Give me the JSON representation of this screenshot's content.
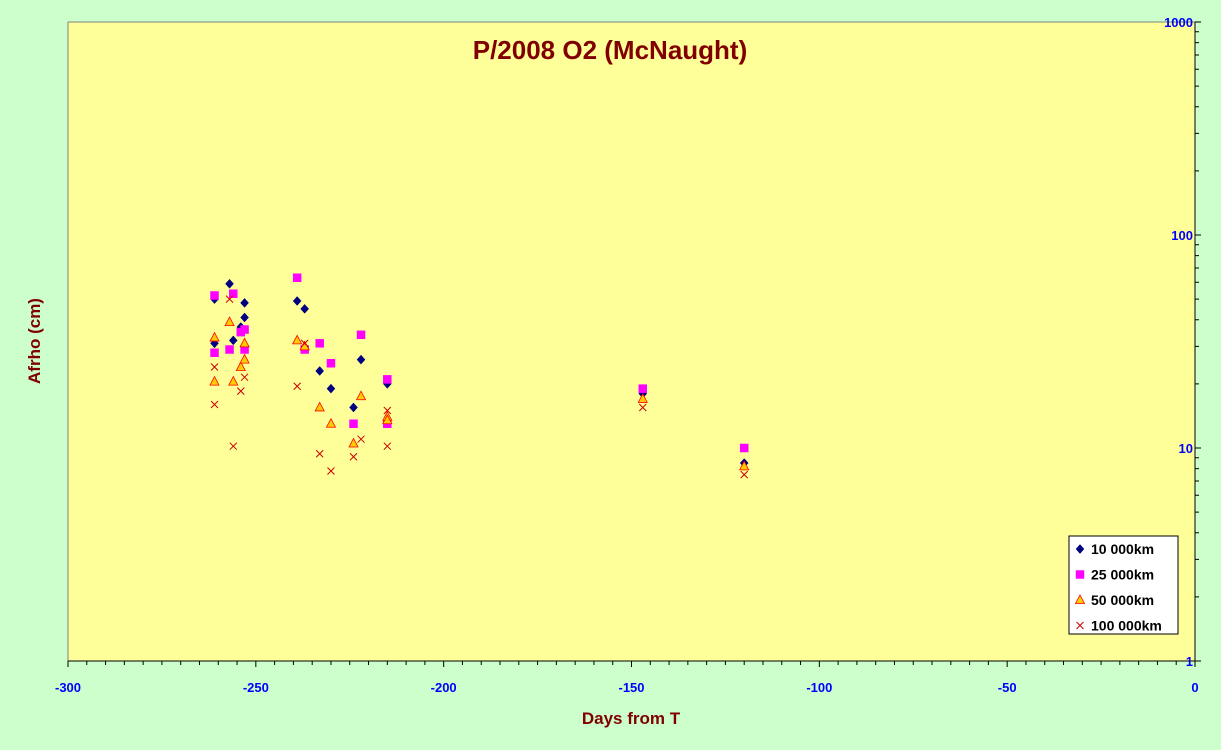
{
  "colors": {
    "outer_background": "#ccffcc",
    "plot_background": "#ffff99",
    "title_color": "#800000",
    "tick_label_color": "#0000ff",
    "axis_line_color": "#000000",
    "legend_background": "#ffffff"
  },
  "chart_data": {
    "type": "scatter",
    "title": "P/2008 O2 (McNaught)",
    "xlabel": "Days from T",
    "ylabel": "Afrho (cm)",
    "xlim": [
      -300,
      0
    ],
    "ylim": [
      1,
      1000
    ],
    "y_scale": "log",
    "y_axis_side": "right",
    "grid": false,
    "legend_position": "bottom-right",
    "x_ticks": [
      "-300",
      "-250",
      "-200",
      "-150",
      "-100",
      "-50",
      "0"
    ],
    "x_tick_values": [
      -300,
      -250,
      -200,
      -150,
      -100,
      -50,
      0
    ],
    "y_ticks": [
      "1",
      "10",
      "100",
      "1000"
    ],
    "y_tick_values": [
      1,
      10,
      100,
      1000
    ],
    "series": [
      {
        "name": "10 000km",
        "marker": "diamond",
        "color": "#000080",
        "points": [
          [
            -261,
            50
          ],
          [
            -261,
            31
          ],
          [
            -257,
            59
          ],
          [
            -256,
            32
          ],
          [
            -254,
            37
          ],
          [
            -253,
            48
          ],
          [
            -253,
            41
          ],
          [
            -239,
            49
          ],
          [
            -237,
            45
          ],
          [
            -233,
            23
          ],
          [
            -230,
            19
          ],
          [
            -224,
            15.5
          ],
          [
            -222,
            26
          ],
          [
            -215,
            20
          ],
          [
            -147,
            18
          ],
          [
            -120,
            8.5
          ]
        ]
      },
      {
        "name": "25 000km",
        "marker": "square",
        "color": "#ff00ff",
        "points": [
          [
            -261,
            52
          ],
          [
            -261,
            28
          ],
          [
            -257,
            29
          ],
          [
            -256,
            53
          ],
          [
            -254,
            35
          ],
          [
            -253,
            36
          ],
          [
            -253,
            29
          ],
          [
            -239,
            63
          ],
          [
            -237,
            29
          ],
          [
            -233,
            31
          ],
          [
            -230,
            25
          ],
          [
            -224,
            13
          ],
          [
            -222,
            34
          ],
          [
            -215,
            21
          ],
          [
            -215,
            13
          ],
          [
            -147,
            19
          ],
          [
            -120,
            10
          ]
        ]
      },
      {
        "name": "50 000km",
        "marker": "triangle",
        "color": "#ffcc00",
        "stroke": "#ff0000",
        "points": [
          [
            -261,
            33
          ],
          [
            -261,
            20.5
          ],
          [
            -257,
            39
          ],
          [
            -256,
            20.5
          ],
          [
            -254,
            24
          ],
          [
            -253,
            31
          ],
          [
            -253,
            26
          ],
          [
            -239,
            32
          ],
          [
            -237,
            30
          ],
          [
            -233,
            15.5
          ],
          [
            -230,
            13
          ],
          [
            -224,
            10.5
          ],
          [
            -222,
            17.5
          ],
          [
            -215,
            14
          ],
          [
            -215,
            13.5
          ],
          [
            -147,
            17
          ],
          [
            -120,
            8.2
          ]
        ]
      },
      {
        "name": "100 000km",
        "marker": "x",
        "color": "#cc0000",
        "points": [
          [
            -261,
            24
          ],
          [
            -261,
            16
          ],
          [
            -257,
            50
          ],
          [
            -256,
            10.2
          ],
          [
            -254,
            18.5
          ],
          [
            -253,
            21.5
          ],
          [
            -239,
            19.5
          ],
          [
            -237,
            31
          ],
          [
            -233,
            9.4
          ],
          [
            -230,
            7.8
          ],
          [
            -224,
            9.1
          ],
          [
            -222,
            11
          ],
          [
            -215,
            15
          ],
          [
            -215,
            10.2
          ],
          [
            -147,
            15.5
          ],
          [
            -120,
            7.5
          ]
        ]
      }
    ]
  }
}
